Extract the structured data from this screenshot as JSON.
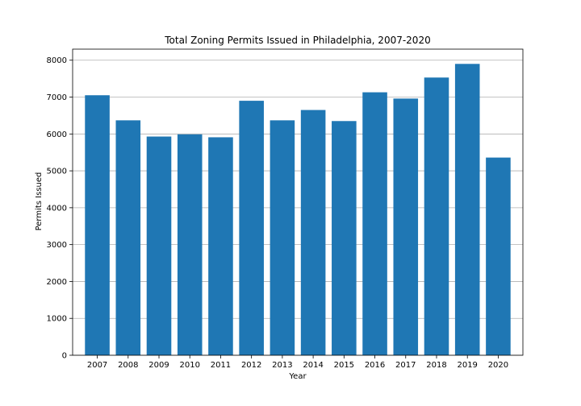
{
  "chart_data": {
    "type": "bar",
    "title": "Total Zoning Permits Issued in Philadelphia, 2007-2020",
    "xlabel": "Year",
    "ylabel": "Permits Issued",
    "categories": [
      "2007",
      "2008",
      "2009",
      "2010",
      "2011",
      "2012",
      "2013",
      "2014",
      "2015",
      "2016",
      "2017",
      "2018",
      "2019",
      "2020"
    ],
    "values": [
      7050,
      6370,
      5930,
      5990,
      5910,
      6900,
      6370,
      6650,
      6350,
      7130,
      6960,
      7530,
      7900,
      5360
    ],
    "ylim": [
      0,
      8300
    ],
    "yticks": [
      0,
      1000,
      2000,
      3000,
      4000,
      5000,
      6000,
      7000,
      8000
    ],
    "grid": "horizontal",
    "bar_color": "#1f77b4",
    "grid_color": "#b0b0b0"
  }
}
